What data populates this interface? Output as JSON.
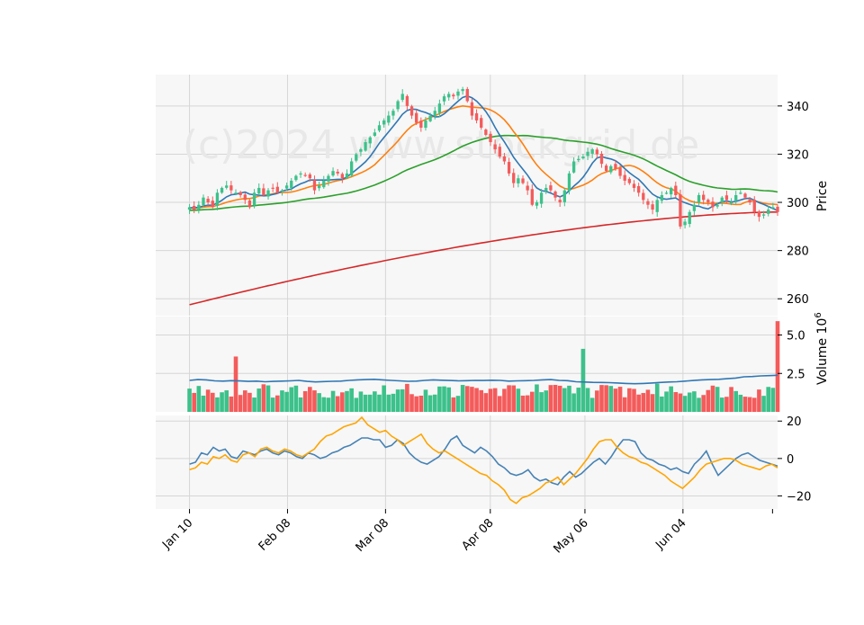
{
  "chart_data": {
    "type": "candlestick",
    "watermark": "(c)2024 www.stockgrid.de",
    "colors": {
      "up": "#3cc18a",
      "down": "#f45b5b",
      "panel_bg": "#f7f7f7",
      "grid": "#d6d6d6",
      "ma_short": "#2f77b4",
      "ma_mid": "#ff7f0e",
      "ma_long": "#2ca02c",
      "ma_200": "#d62728",
      "volume_ma": "#2f77b4",
      "osc_1": "#4682b4",
      "osc_2": "#ffa500",
      "watermark": "#e8e8e8"
    },
    "x_ticks": [
      {
        "label": "Jan 10",
        "day": 0
      },
      {
        "label": "Feb 08",
        "day": 29
      },
      {
        "label": "Mar 08",
        "day": 58
      },
      {
        "label": "Apr 08",
        "day": 89
      },
      {
        "label": "May 06",
        "day": 117
      },
      {
        "label": "Jun 04",
        "day": 146
      }
    ],
    "x_range_days": [
      -10,
      174
    ],
    "price": {
      "ylabel": "Price",
      "ylim": [
        253,
        353
      ],
      "ticks": [
        "340",
        "320",
        "300",
        "280",
        "260"
      ],
      "tick_values": [
        340,
        320,
        300,
        280,
        260
      ],
      "closes": [
        298,
        297,
        299,
        302,
        300,
        298,
        304,
        306,
        307,
        305,
        304,
        303,
        301,
        298,
        304,
        306,
        303,
        305,
        306,
        304,
        305,
        307,
        309,
        311,
        312,
        311,
        310,
        305,
        307,
        309,
        311,
        313,
        312,
        310,
        312,
        317,
        320,
        322,
        325,
        327,
        329,
        332,
        334,
        336,
        338,
        342,
        345,
        340,
        336,
        333,
        331,
        334,
        336,
        338,
        341,
        344,
        345,
        344,
        346,
        347,
        342,
        336,
        334,
        331,
        328,
        325,
        322,
        319,
        317,
        312,
        308,
        310,
        308,
        305,
        299,
        300,
        304,
        306,
        305,
        302,
        300,
        305,
        312,
        317,
        318,
        319,
        321,
        322,
        320,
        316,
        313,
        315,
        314,
        311,
        309,
        308,
        306,
        304,
        301,
        299,
        297,
        301,
        303,
        304,
        306,
        303,
        290,
        292,
        296,
        299,
        303,
        301,
        300,
        298,
        299,
        302,
        301,
        300,
        303,
        304,
        302,
        300,
        296,
        294,
        295,
        297,
        298,
        296
      ],
      "volume_ylabel": "Volume  10",
      "volume_exp": "6",
      "volume_ylim": [
        0,
        6.2
      ],
      "volume_ticks": [
        "5.0",
        "2.5"
      ],
      "volume_tick_values": [
        5.0,
        2.5
      ],
      "volume_ma": [
        2.05,
        2.1,
        2.08,
        2.02,
        2.0,
        2.03,
        2.01,
        1.98,
        2.0,
        1.96,
        1.98,
        2.0,
        2.02,
        2.05,
        1.98,
        1.95,
        1.97,
        1.99,
        2.0,
        2.05,
        2.08,
        2.1,
        2.12,
        2.08,
        2.05,
        2.02,
        1.99,
        2.0,
        2.05,
        2.08,
        2.06,
        2.04,
        2.02,
        2.03,
        2.05,
        2.04,
        2.06,
        2.05,
        2.0,
        2.02,
        2.03,
        2.05,
        2.08,
        2.1,
        2.05,
        2.03,
        1.96,
        1.94,
        1.92,
        1.91,
        1.9,
        1.88,
        1.85,
        1.83,
        1.85,
        1.88,
        1.91,
        1.94,
        1.96,
        2.0,
        2.04,
        2.08,
        2.1,
        2.12,
        2.16,
        2.2,
        2.28,
        2.3,
        2.34,
        2.36,
        2.38
      ],
      "oscillator": {
        "ylim": [
          -27,
          23
        ],
        "ticks": [
          "20",
          "0",
          "−20"
        ],
        "tick_values": [
          20,
          0,
          -20
        ],
        "series": [
          {
            "name": "line 1",
            "values": [
              -3,
              -2,
              3,
              2,
              6,
              4,
              5,
              1,
              0,
              4,
              3,
              2,
              4,
              5,
              3,
              2,
              4,
              3,
              1,
              0,
              3,
              2,
              0,
              1,
              3,
              4,
              6,
              7,
              9,
              11,
              11,
              10,
              10,
              6,
              7,
              10,
              8,
              3,
              0,
              -2,
              -3,
              -1,
              1,
              5,
              10,
              12,
              7,
              5,
              3,
              6,
              4,
              1,
              -3,
              -5,
              -8,
              -9,
              -8,
              -6,
              -10,
              -12,
              -11,
              -13,
              -14,
              -10,
              -7,
              -10,
              -8,
              -5,
              -2,
              0,
              -3,
              1,
              6,
              10,
              10,
              9,
              3,
              0,
              -1,
              -3,
              -4,
              -6,
              -5,
              -7,
              -8,
              -3,
              0,
              4,
              -3,
              -9,
              -6,
              -3,
              0,
              2,
              3,
              1,
              -1,
              -2,
              -3,
              -4
            ]
          },
          {
            "name": "line 2",
            "values": [
              -6,
              -5,
              -2,
              -3,
              1,
              0,
              2,
              -1,
              -2,
              2,
              3,
              1,
              5,
              6,
              4,
              3,
              5,
              4,
              2,
              1,
              3,
              5,
              9,
              12,
              13,
              15,
              17,
              18,
              19,
              22,
              18,
              16,
              14,
              15,
              12,
              10,
              7,
              9,
              11,
              13,
              8,
              5,
              3,
              4,
              2,
              0,
              -2,
              -4,
              -6,
              -8,
              -9,
              -12,
              -14,
              -17,
              -22,
              -24,
              -21,
              -20,
              -18,
              -16,
              -13,
              -12,
              -10,
              -14,
              -11,
              -8,
              -4,
              0,
              5,
              9,
              10,
              10,
              6,
              3,
              1,
              0,
              -2,
              -3,
              -5,
              -7,
              -9,
              -12,
              -14,
              -16,
              -13,
              -10,
              -6,
              -3,
              -2,
              -1,
              0,
              0,
              -1,
              -3,
              -4,
              -5,
              -6,
              -4,
              -3,
              -5
            ]
          }
        ]
      }
    }
  }
}
